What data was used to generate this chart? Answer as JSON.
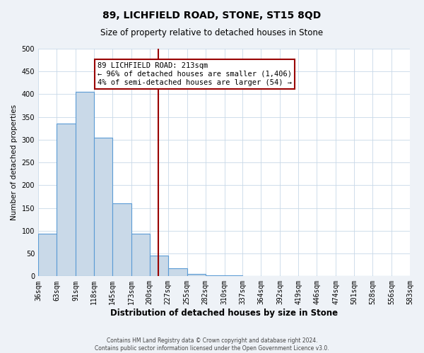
{
  "title": "89, LICHFIELD ROAD, STONE, ST15 8QD",
  "subtitle": "Size of property relative to detached houses in Stone",
  "xlabel": "Distribution of detached houses by size in Stone",
  "ylabel": "Number of detached properties",
  "bin_edges": [
    36,
    63,
    91,
    118,
    145,
    173,
    200,
    227,
    255,
    282,
    310,
    337,
    364,
    392,
    419,
    446,
    474,
    501,
    528,
    556,
    583
  ],
  "bin_labels": [
    "36sqm",
    "63sqm",
    "91sqm",
    "118sqm",
    "145sqm",
    "173sqm",
    "200sqm",
    "227sqm",
    "255sqm",
    "282sqm",
    "310sqm",
    "337sqm",
    "364sqm",
    "392sqm",
    "419sqm",
    "446sqm",
    "474sqm",
    "501sqm",
    "528sqm",
    "556sqm",
    "583sqm"
  ],
  "counts": [
    93,
    336,
    406,
    304,
    160,
    93,
    45,
    17,
    5,
    2,
    2,
    1,
    1,
    0,
    0,
    0,
    0,
    1,
    0,
    1
  ],
  "bar_color": "#c9d9e8",
  "bar_edge_color": "#5b9bd5",
  "property_line_x": 213,
  "property_line_color": "#990000",
  "annotation_line1": "89 LICHFIELD ROAD: 213sqm",
  "annotation_line2": "← 96% of detached houses are smaller (1,406)",
  "annotation_line3": "4% of semi-detached houses are larger (54) →",
  "annotation_box_color": "#ffffff",
  "annotation_box_edge_color": "#990000",
  "ylim": [
    0,
    500
  ],
  "yticks": [
    0,
    50,
    100,
    150,
    200,
    250,
    300,
    350,
    400,
    450,
    500
  ],
  "footer_line1": "Contains HM Land Registry data © Crown copyright and database right 2024.",
  "footer_line2": "Contains public sector information licensed under the Open Government Licence v3.0.",
  "background_color": "#eef2f7",
  "plot_background_color": "#ffffff",
  "grid_color": "#c8d8e8",
  "title_fontsize": 10,
  "subtitle_fontsize": 8.5,
  "xlabel_fontsize": 8.5,
  "ylabel_fontsize": 7.5,
  "tick_fontsize": 7,
  "annotation_fontsize": 7.5,
  "footer_fontsize": 5.5
}
